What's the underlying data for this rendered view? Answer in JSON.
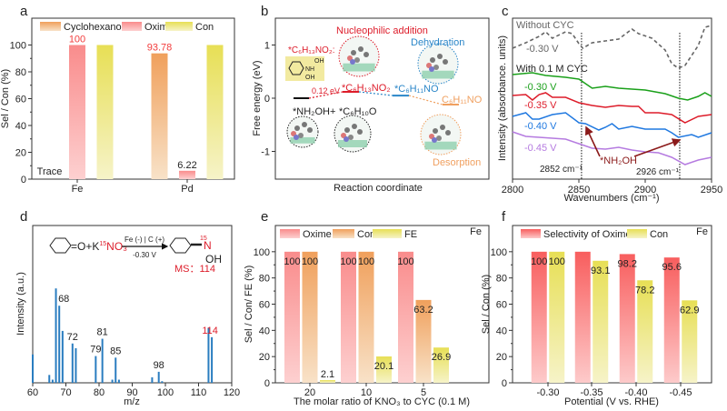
{
  "panel_letters": [
    "a",
    "b",
    "c",
    "d",
    "e",
    "f"
  ],
  "colors": {
    "oxime": "#f98e8e",
    "oxime_f": "#f86a6a",
    "con": "#e8e05a",
    "cyclohexanol": "#f2a062",
    "fe_ratio": "#e8e05a",
    "green": "#1aa01a",
    "red": "#dd1c2a",
    "blue": "#1f78e0",
    "purple": "#b57be0",
    "gray": "#666666",
    "darkred": "#8b1a1a",
    "orange": "#f0a060",
    "mol_blue": "#2a86c8"
  },
  "chart_data": [
    {
      "type": "bar",
      "panel": "a",
      "categories": [
        "Fe",
        "Pd"
      ],
      "ylabel": "Sel / Con (%)",
      "ylim": [
        0,
        120
      ],
      "yticks": [
        0,
        20,
        40,
        60,
        80,
        100
      ],
      "legend_position": "top",
      "series": [
        {
          "name": "Cyclohexanol",
          "values": [
            0,
            93.78
          ],
          "value_labels": [
            "Trace",
            "93.78"
          ]
        },
        {
          "name": "Oxime",
          "values": [
            100,
            6.22
          ],
          "value_labels": [
            "100",
            "6.22"
          ]
        },
        {
          "name": "Con",
          "values": [
            100,
            100
          ],
          "value_labels": [
            null,
            null
          ]
        }
      ]
    },
    {
      "type": "line",
      "panel": "b",
      "xlabel": "Reaction coordinate",
      "ylabel": "Free energy (eV)",
      "ylim": [
        -1.5,
        1.5
      ],
      "yticks": [
        -1,
        0,
        1
      ],
      "steps": [
        {
          "species": "*NH₂OH + *C₆H₁₀O",
          "energy": 0
        },
        {
          "species": "*C₆H₁₃NO₂",
          "energy": 0.12
        },
        {
          "species": "*C₆H₁₁NO",
          "energy": 0.05
        },
        {
          "species": "C₆H₁₁NO",
          "energy": -0.12
        }
      ],
      "annotations": {
        "barrier": "0.12 eV",
        "nucleophilic": "Nucleophilic addition",
        "dehydration": "Dehydration",
        "desorption": "Desorption",
        "intermediate_label": "*C₆H₁₃NO₂:",
        "structure_groups": [
          "OH",
          "NH",
          "OH"
        ],
        "initial_a": "*NH₂OH",
        "plus": "+",
        "initial_b": "*C₆H₁₀O"
      }
    },
    {
      "type": "line",
      "panel": "c",
      "xlabel": "Wavenumbers (cm⁻¹)",
      "ylabel": "Intensity (absorbance. units)",
      "xlim": [
        2800,
        2950
      ],
      "xticks": [
        2800,
        2850,
        2900,
        2950
      ],
      "ylim": [
        0,
        17.7
      ],
      "group_labels": {
        "without": "Without CYC",
        "with": "With 0.1 M CYC"
      },
      "series": [
        {
          "name": "-0.30 V",
          "group": "without",
          "style": "dashed",
          "color_key": "gray",
          "x": [
            2800,
            2810,
            2820,
            2825,
            2830,
            2840,
            2845,
            2850,
            2853,
            2860,
            2870,
            2880,
            2890,
            2895,
            2905,
            2915,
            2920,
            2925,
            2930,
            2940,
            2945,
            2950
          ],
          "y": [
            14.4,
            15.0,
            15.7,
            16.2,
            15.5,
            16.2,
            16.0,
            14.9,
            14.4,
            15.0,
            15.2,
            15.4,
            16.5,
            16.0,
            15.5,
            14.2,
            12.7,
            12.2,
            12.5,
            14.7,
            16.7,
            16.9
          ]
        },
        {
          "name": "-0.30 V",
          "group": "with",
          "style": "solid",
          "color_key": "green",
          "x": [
            2800,
            2815,
            2825,
            2840,
            2850,
            2860,
            2870,
            2880,
            2900,
            2915,
            2925,
            2932,
            2940,
            2945,
            2950
          ],
          "y": [
            11.5,
            11.7,
            11.4,
            11.2,
            11.0,
            10.0,
            10.2,
            10.0,
            9.8,
            9.4,
            8.9,
            8.7,
            9.1,
            9.5,
            9.1
          ]
        },
        {
          "name": "-0.35 V",
          "group": "with",
          "style": "solid",
          "color_key": "red",
          "x": [
            2800,
            2810,
            2815,
            2820,
            2825,
            2830,
            2840,
            2850,
            2860,
            2870,
            2880,
            2890,
            2895,
            2900,
            2910,
            2920,
            2930,
            2940,
            2950
          ],
          "y": [
            9.2,
            9.3,
            8.7,
            9.3,
            9.5,
            9.0,
            9.0,
            8.4,
            8.1,
            7.9,
            8.1,
            8.0,
            8.0,
            7.3,
            7.3,
            7.1,
            6.2,
            6.9,
            7.1
          ]
        },
        {
          "name": "-0.40 V",
          "group": "with",
          "style": "solid",
          "color_key": "blue",
          "x": [
            2800,
            2810,
            2815,
            2820,
            2830,
            2840,
            2850,
            2855,
            2865,
            2870,
            2875,
            2880,
            2890,
            2900,
            2915,
            2920,
            2925,
            2935,
            2940,
            2950
          ],
          "y": [
            6.9,
            7.3,
            6.6,
            6.6,
            7.1,
            7.3,
            6.2,
            6.1,
            5.4,
            5.7,
            6.1,
            5.5,
            5.8,
            5.5,
            5.5,
            5.1,
            4.6,
            4.9,
            4.6,
            5.1
          ]
        },
        {
          "name": "-0.45 V",
          "group": "with",
          "style": "solid",
          "color_key": "purple",
          "x": [
            2800,
            2810,
            2820,
            2830,
            2840,
            2850,
            2860,
            2870,
            2880,
            2890,
            2900,
            2910,
            2920,
            2930,
            2940,
            2950
          ],
          "y": [
            5.2,
            4.7,
            4.6,
            4.5,
            4.4,
            3.9,
            3.4,
            3.3,
            3.5,
            3.2,
            3.0,
            2.9,
            2.4,
            1.6,
            2.1,
            2.4
          ]
        }
      ],
      "markers": [
        {
          "x": 2852,
          "label": "2852 cm⁻¹"
        },
        {
          "x": 2926,
          "label": "2926 cm⁻¹"
        }
      ],
      "annotation": "*NH₂OH"
    },
    {
      "type": "bar",
      "panel": "d",
      "xlabel": "m/z",
      "ylabel": "Intensity (a.u.)",
      "xlim": [
        60,
        120
      ],
      "xticks": [
        60,
        70,
        80,
        90,
        100,
        110,
        120
      ],
      "ylim": [
        0,
        100
      ],
      "peaks": [
        {
          "mz": 60,
          "intensity": 18
        },
        {
          "mz": 65,
          "intensity": 5
        },
        {
          "mz": 66,
          "intensity": 2
        },
        {
          "mz": 67,
          "intensity": 60
        },
        {
          "mz": 68,
          "intensity": 49,
          "label": "68"
        },
        {
          "mz": 69,
          "intensity": 33
        },
        {
          "mz": 72,
          "intensity": 25,
          "label": "72"
        },
        {
          "mz": 73,
          "intensity": 22
        },
        {
          "mz": 79,
          "intensity": 17,
          "label": "79"
        },
        {
          "mz": 81,
          "intensity": 28,
          "label": "81"
        },
        {
          "mz": 84,
          "intensity": 2
        },
        {
          "mz": 85,
          "intensity": 16,
          "label": "85"
        },
        {
          "mz": 86,
          "intensity": 2
        },
        {
          "mz": 96,
          "intensity": 3.5
        },
        {
          "mz": 98,
          "intensity": 7,
          "label": "98"
        },
        {
          "mz": 99,
          "intensity": 1
        },
        {
          "mz": 113,
          "intensity": 35
        },
        {
          "mz": 114,
          "intensity": 29,
          "label": "114",
          "highlight": true
        }
      ],
      "reaction": {
        "reactant_suffix": "=O+K",
        "isotope": "15",
        "nitrate": "NO₃",
        "conditions_top": "Fe (-) | C (+)",
        "conditions_bottom": "-0.30 V",
        "product_n": "N",
        "product_oh": "OH",
        "ms_label": "MS：114"
      }
    },
    {
      "type": "bar",
      "panel": "e",
      "categories": [
        "20",
        "10",
        "5"
      ],
      "xlabel": "The molar ratio of KNO₃ to CYC (0.1 M)",
      "ylabel": "Sel / Con/ FE (%)",
      "ylim": [
        0,
        120
      ],
      "yticks": [
        0,
        20,
        40,
        60,
        80,
        100
      ],
      "legend_position": "top",
      "catalyst_label": "Fe",
      "series": [
        {
          "name": "Oxime",
          "values": [
            100,
            100,
            100
          ],
          "value_labels": [
            "100",
            "100",
            "100"
          ]
        },
        {
          "name": "Con",
          "values": [
            100,
            100,
            63.2
          ],
          "value_labels": [
            "100",
            "100",
            "63.2"
          ]
        },
        {
          "name": "FE",
          "values": [
            2.1,
            20.1,
            26.9
          ],
          "value_labels": [
            "2.1",
            "20.1",
            "26.9"
          ]
        }
      ]
    },
    {
      "type": "bar",
      "panel": "f",
      "categories": [
        "-0.30",
        "-0.35",
        "-0.40",
        "-0.45"
      ],
      "xlabel": "Potential (V vs. RHE)",
      "ylabel": "Sel / Con (%)",
      "ylim": [
        0,
        120
      ],
      "yticks": [
        0,
        20,
        40,
        60,
        80,
        100
      ],
      "legend_position": "top",
      "catalyst_label": "Fe",
      "series": [
        {
          "name": "Selectivity of Oxime",
          "values": [
            100,
            100,
            98.2,
            95.6
          ],
          "value_labels": [
            "100",
            null,
            "98.2",
            "95.6"
          ]
        },
        {
          "name": "Con",
          "values": [
            100,
            93.1,
            78.2,
            62.9
          ],
          "value_labels": [
            "100",
            "93.1",
            "78.2",
            "62.9"
          ]
        }
      ]
    }
  ]
}
